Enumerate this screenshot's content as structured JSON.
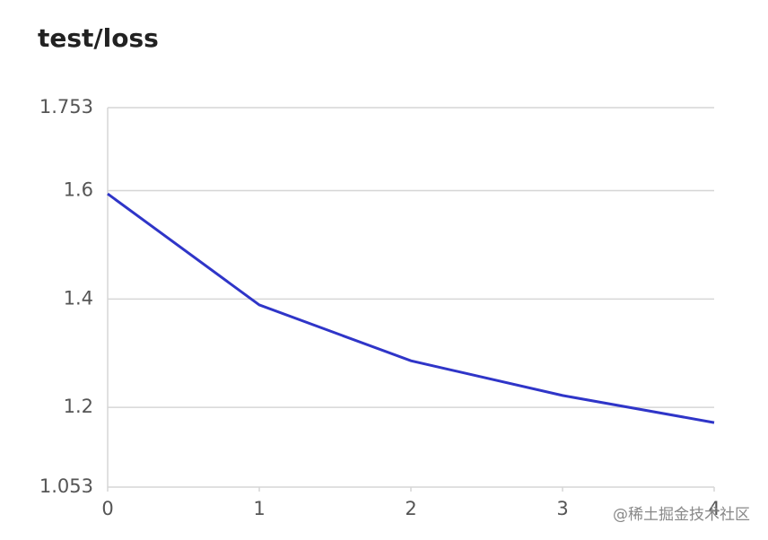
{
  "chart_data": {
    "type": "line",
    "title": "test/loss",
    "x": [
      0,
      1,
      2,
      3,
      4
    ],
    "series": [
      {
        "name": "test/loss",
        "color": "#2f35c8",
        "values": [
          1.594,
          1.389,
          1.286,
          1.222,
          1.172
        ]
      }
    ],
    "xlim": [
      0,
      4
    ],
    "xticks": [
      0,
      1,
      2,
      3,
      4
    ],
    "ylim": [
      1.053,
      1.753
    ],
    "yticks": [
      1.053,
      1.2,
      1.4,
      1.6,
      1.753
    ],
    "grid": true
  },
  "watermark": "@稀土掘金技术社区"
}
